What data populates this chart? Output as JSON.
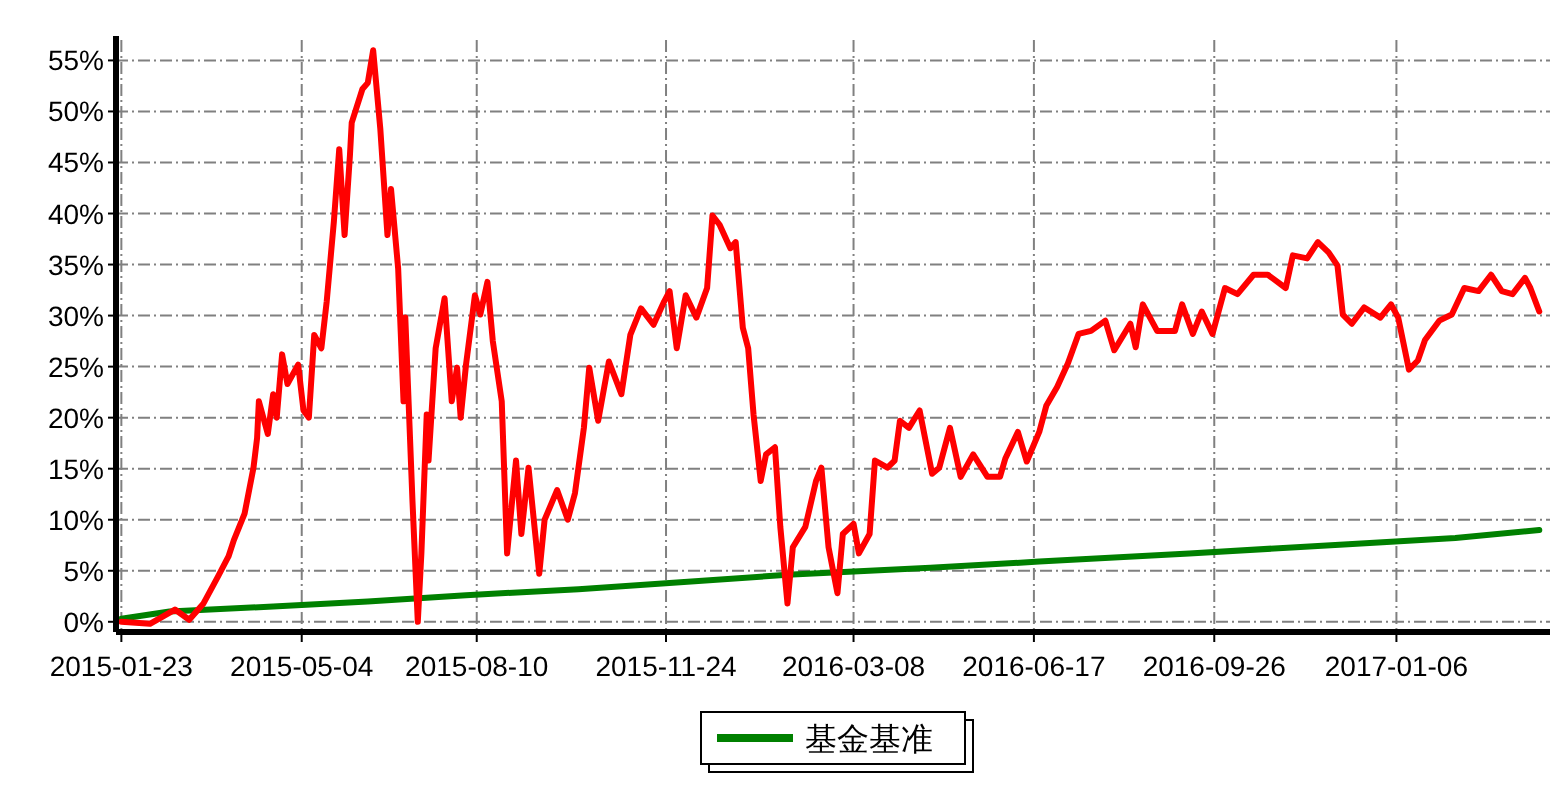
{
  "chart_data": {
    "type": "line",
    "xlim": [
      "2015-01-20",
      "2017-04-02"
    ],
    "ylim": [
      -1,
      57
    ],
    "xticks": [
      "2015-01-23",
      "2015-05-04",
      "2015-08-10",
      "2015-11-24",
      "2016-03-08",
      "2016-06-17",
      "2016-09-26",
      "2017-01-06"
    ],
    "yticks": [
      {
        "value": 0,
        "label": "0%"
      },
      {
        "value": 5,
        "label": "5%"
      },
      {
        "value": 10,
        "label": "10%"
      },
      {
        "value": 15,
        "label": "15%"
      },
      {
        "value": 20,
        "label": "20%"
      },
      {
        "value": 25,
        "label": "25%"
      },
      {
        "value": 30,
        "label": "30%"
      },
      {
        "value": 35,
        "label": "35%"
      },
      {
        "value": 40,
        "label": "40%"
      },
      {
        "value": 45,
        "label": "45%"
      },
      {
        "value": 50,
        "label": "50%"
      },
      {
        "value": 55,
        "label": "55%"
      }
    ],
    "grid": true,
    "legend": "bottom",
    "line_style": "solid",
    "marker": "none",
    "series": [
      {
        "color": "#ff0000",
        "x": [
          "2015-01-23",
          "2015-02-08",
          "2015-02-22",
          "2015-03-02",
          "2015-03-10",
          "2015-03-18",
          "2015-03-24",
          "2015-03-27",
          "2015-04-02",
          "2015-04-07",
          "2015-04-09",
          "2015-04-10",
          "2015-04-15",
          "2015-04-18",
          "2015-04-20",
          "2015-04-23",
          "2015-04-26",
          "2015-05-02",
          "2015-05-05",
          "2015-05-08",
          "2015-05-11",
          "2015-05-15",
          "2015-05-18",
          "2015-05-22",
          "2015-05-25",
          "2015-05-28",
          "2015-05-31",
          "2015-06-01",
          "2015-06-07",
          "2015-06-10",
          "2015-06-13",
          "2015-06-17",
          "2015-06-21",
          "2015-06-23",
          "2015-06-27",
          "2015-06-30",
          "2015-07-01",
          "2015-07-05",
          "2015-07-08",
          "2015-07-10",
          "2015-07-13",
          "2015-07-14",
          "2015-07-18",
          "2015-07-23",
          "2015-07-27",
          "2015-07-30",
          "2015-08-01",
          "2015-08-04",
          "2015-08-09",
          "2015-08-12",
          "2015-08-16",
          "2015-08-19",
          "2015-08-24",
          "2015-08-27",
          "2015-09-01",
          "2015-09-04",
          "2015-09-08",
          "2015-09-14",
          "2015-09-17",
          "2015-09-24",
          "2015-09-30",
          "2015-10-04",
          "2015-10-09",
          "2015-10-12",
          "2015-10-17",
          "2015-10-23",
          "2015-10-30",
          "2015-11-04",
          "2015-11-10",
          "2015-11-17",
          "2015-11-23",
          "2015-11-26",
          "2015-11-30",
          "2015-12-05",
          "2015-12-11",
          "2015-12-17",
          "2015-12-20",
          "2015-12-24",
          "2015-12-30",
          "2016-01-02",
          "2016-01-06",
          "2016-01-09",
          "2016-01-12",
          "2016-01-16",
          "2016-01-19",
          "2016-01-24",
          "2016-01-27",
          "2016-01-31",
          "2016-02-03",
          "2016-02-10",
          "2016-02-16",
          "2016-02-19",
          "2016-02-23",
          "2016-02-28",
          "2016-03-02",
          "2016-03-08",
          "2016-03-11",
          "2016-03-17",
          "2016-03-20",
          "2016-03-27",
          "2016-03-31",
          "2016-04-03",
          "2016-04-08",
          "2016-04-14",
          "2016-04-21",
          "2016-04-25",
          "2016-05-01",
          "2016-05-07",
          "2016-05-14",
          "2016-05-22",
          "2016-05-29",
          "2016-06-01",
          "2016-06-08",
          "2016-06-13",
          "2016-06-20",
          "2016-06-24",
          "2016-06-30",
          "2016-07-06",
          "2016-07-12",
          "2016-07-19",
          "2016-07-27",
          "2016-08-01",
          "2016-08-10",
          "2016-08-13",
          "2016-08-17",
          "2016-08-25",
          "2016-09-04",
          "2016-09-08",
          "2016-09-14",
          "2016-09-19",
          "2016-09-25",
          "2016-10-02",
          "2016-10-09",
          "2016-10-18",
          "2016-10-26",
          "2016-11-05",
          "2016-11-09",
          "2016-11-17",
          "2016-11-23",
          "2016-11-29",
          "2016-12-04",
          "2016-12-07",
          "2016-12-12",
          "2016-12-19",
          "2016-12-28",
          "2017-01-03",
          "2017-01-07",
          "2017-01-13",
          "2017-01-18",
          "2017-01-22",
          "2017-01-30",
          "2017-02-06",
          "2017-02-13",
          "2017-02-21",
          "2017-02-28",
          "2017-03-06",
          "2017-03-12",
          "2017-03-19",
          "2017-03-22",
          "2017-03-27"
        ],
        "values": [
          0,
          -0.2,
          1.2,
          0.2,
          1.8,
          4.4,
          6.4,
          8,
          10.6,
          15.1,
          18,
          21.6,
          18.4,
          22.3,
          20,
          26.2,
          23.3,
          25.2,
          20.7,
          20,
          28.1,
          26.8,
          31.4,
          39.2,
          46.3,
          37.9,
          45.7,
          48.9,
          52.2,
          52.8,
          56,
          48.3,
          37.9,
          42.4,
          34.6,
          21.6,
          29.8,
          11.9,
          0,
          6.7,
          20.3,
          15.8,
          26.8,
          31.7,
          21.6,
          24.9,
          20,
          25.2,
          32,
          30.1,
          33.3,
          27.5,
          21.6,
          6.7,
          15.8,
          8.6,
          15.1,
          4.7,
          10,
          12.9,
          10,
          12.6,
          19,
          24.9,
          19.7,
          25.5,
          22.3,
          28.1,
          30.7,
          29.1,
          31.4,
          32.4,
          26.8,
          32,
          29.8,
          32.7,
          39.8,
          38.9,
          36.6,
          37.2,
          28.8,
          26.8,
          20.3,
          13.8,
          16.4,
          17.1,
          9.3,
          1.8,
          7.3,
          9.3,
          13.8,
          15.1,
          7.3,
          2.8,
          8.6,
          9.6,
          6.7,
          8.6,
          15.8,
          15.1,
          15.8,
          19.7,
          19,
          20.7,
          14.5,
          15.1,
          19,
          14.2,
          16.4,
          14.2,
          14.2,
          16,
          18.6,
          15.7,
          18.6,
          21.2,
          23,
          25.3,
          28.2,
          28.5,
          29.5,
          26.6,
          29.2,
          26.9,
          31.1,
          28.5,
          28.5,
          31.1,
          28.2,
          30.4,
          28.2,
          32.7,
          32.1,
          34,
          34,
          32.7,
          35.9,
          35.6,
          37.2,
          36.2,
          34.9,
          30.1,
          29.2,
          30.8,
          29.8,
          31.1,
          29.8,
          24.7,
          25.6,
          27.6,
          29.5,
          30.1,
          32.7,
          32.4,
          34,
          32.4,
          32.1,
          33.7,
          32.7,
          30.4
        ]
      },
      {
        "name": "基金基准",
        "color": "#008000",
        "x": [
          "2015-01-23",
          "2015-02-19",
          "2015-04-18",
          "2015-06-10",
          "2015-08-04",
          "2015-10-06",
          "2016-01-31",
          "2016-04-20",
          "2016-06-20",
          "2016-09-12",
          "2016-12-10",
          "2017-02-08",
          "2017-03-27"
        ],
        "values": [
          0.3,
          1.0,
          1.5,
          2.0,
          2.6,
          3.2,
          4.6,
          5.3,
          5.9,
          6.7,
          7.6,
          8.2,
          9.0
        ]
      }
    ]
  }
}
